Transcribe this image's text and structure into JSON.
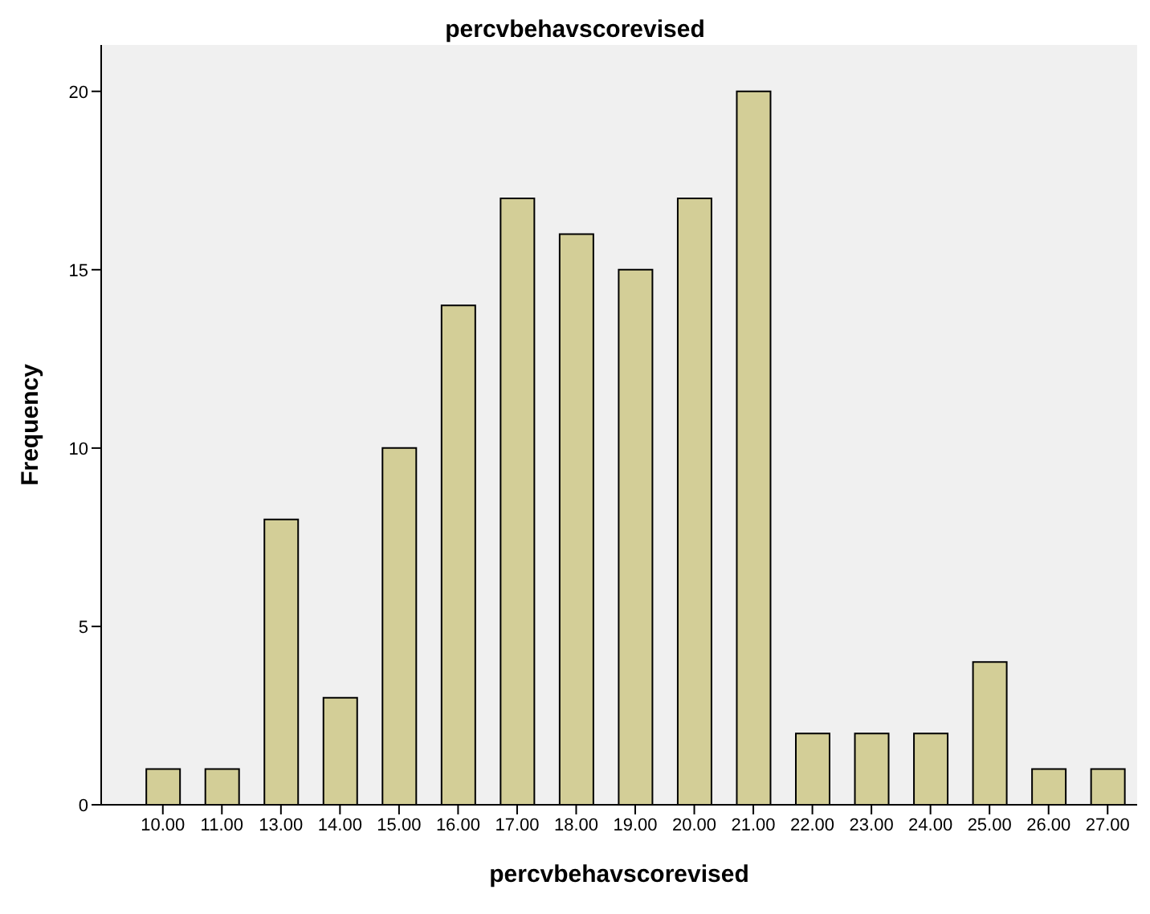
{
  "chart_data": {
    "type": "bar",
    "title": "percvbehavscorevised",
    "xlabel": "percvbehavscorevised",
    "ylabel": "Frequency",
    "categories": [
      "10.00",
      "11.00",
      "13.00",
      "14.00",
      "15.00",
      "16.00",
      "17.00",
      "18.00",
      "19.00",
      "20.00",
      "21.00",
      "22.00",
      "23.00",
      "24.00",
      "25.00",
      "26.00",
      "27.00"
    ],
    "values": [
      1,
      1,
      8,
      3,
      10,
      14,
      17,
      16,
      15,
      17,
      20,
      2,
      2,
      2,
      4,
      1,
      1
    ],
    "color": "#d3ce97",
    "ylim": [
      0,
      21.3
    ],
    "yticks": [
      0,
      5,
      10,
      15,
      20
    ],
    "grid": false
  }
}
